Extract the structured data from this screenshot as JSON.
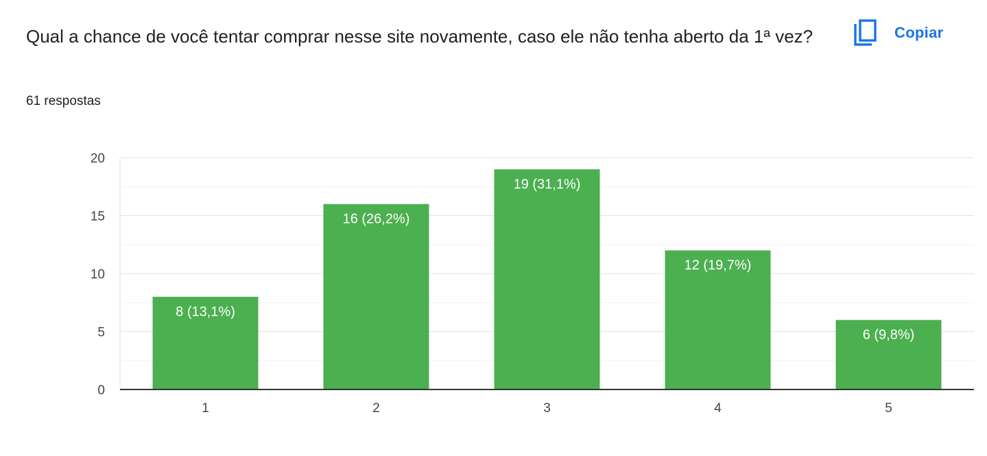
{
  "header": {
    "title": "Qual a chance de você tentar comprar nesse site novamente, caso ele não tenha aberto da 1ª vez?",
    "response_count": "61 respostas",
    "copy_label": "Copiar",
    "copy_icon": "copy-icon"
  },
  "colors": {
    "bar": "#4caf50",
    "accent": "#1a73e8",
    "grid": "#e0e0e0",
    "baseline": "#333333"
  },
  "chart_data": {
    "type": "bar",
    "categories": [
      "1",
      "2",
      "3",
      "4",
      "5"
    ],
    "values": [
      8,
      16,
      19,
      12,
      6
    ],
    "data_labels": [
      "8 (13,1%)",
      "16 (26,2%)",
      "19 (31,1%)",
      "12 (19,7%)",
      "6 (9,8%)"
    ],
    "yticks": [
      0,
      5,
      10,
      15,
      20
    ],
    "ylim": [
      0,
      20
    ],
    "minor_grid_step": 2.5,
    "grid": true,
    "title": "",
    "xlabel": "",
    "ylabel": ""
  }
}
